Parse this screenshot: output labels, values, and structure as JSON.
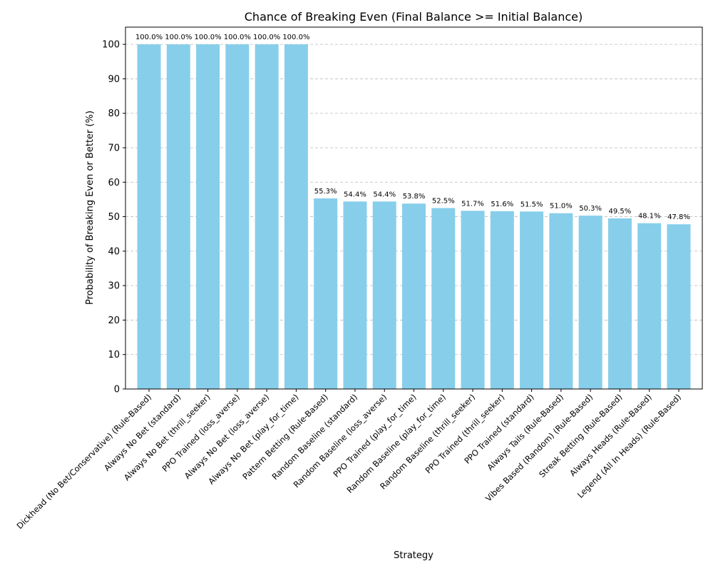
{
  "chart_data": {
    "type": "bar",
    "title": "Chance of Breaking Even (Final Balance >= Initial Balance)",
    "xlabel": "Strategy",
    "ylabel": "Probability of Breaking Even or Better (%)",
    "ylim": [
      0,
      105
    ],
    "yticks": [
      "0",
      "10",
      "20",
      "30",
      "40",
      "50",
      "60",
      "70",
      "80",
      "90",
      "100"
    ],
    "grid": "y-dashed",
    "bar_color": "#87CEEB",
    "grid_color": "#bbbbbb",
    "categories": [
      "Dickhead (No Bet/Conservative) (Rule-Based)",
      "Always No Bet (standard)",
      "Always No Bet (thrill_seeker)",
      "PPO Trained (loss_averse)",
      "Always No Bet (loss_averse)",
      "Always No Bet (play_for_time)",
      "Pattern Betting (Rule-Based)",
      "Random Baseline (standard)",
      "Random Baseline (loss_averse)",
      "PPO Trained (play_for_time)",
      "Random Baseline (play_for_time)",
      "Random Baseline (thrill_seeker)",
      "PPO Trained (thrill_seeker)",
      "PPO Trained (standard)",
      "Always Tails (Rule-Based)",
      "Vibes Based (Random) (Rule-Based)",
      "Streak Betting (Rule-Based)",
      "Always Heads (Rule-Based)",
      "Legend (All In Heads) (Rule-Based)"
    ],
    "values": [
      100.0,
      100.0,
      100.0,
      100.0,
      100.0,
      100.0,
      55.3,
      54.4,
      54.4,
      53.8,
      52.5,
      51.7,
      51.6,
      51.5,
      51.0,
      50.3,
      49.5,
      48.1,
      47.8
    ],
    "data_labels": [
      "100.0%",
      "100.0%",
      "100.0%",
      "100.0%",
      "100.0%",
      "100.0%",
      "55.3%",
      "54.4%",
      "54.4%",
      "53.8%",
      "52.5%",
      "51.7%",
      "51.6%",
      "51.5%",
      "51.0%",
      "50.3%",
      "49.5%",
      "48.1%",
      "47.8%"
    ]
  }
}
